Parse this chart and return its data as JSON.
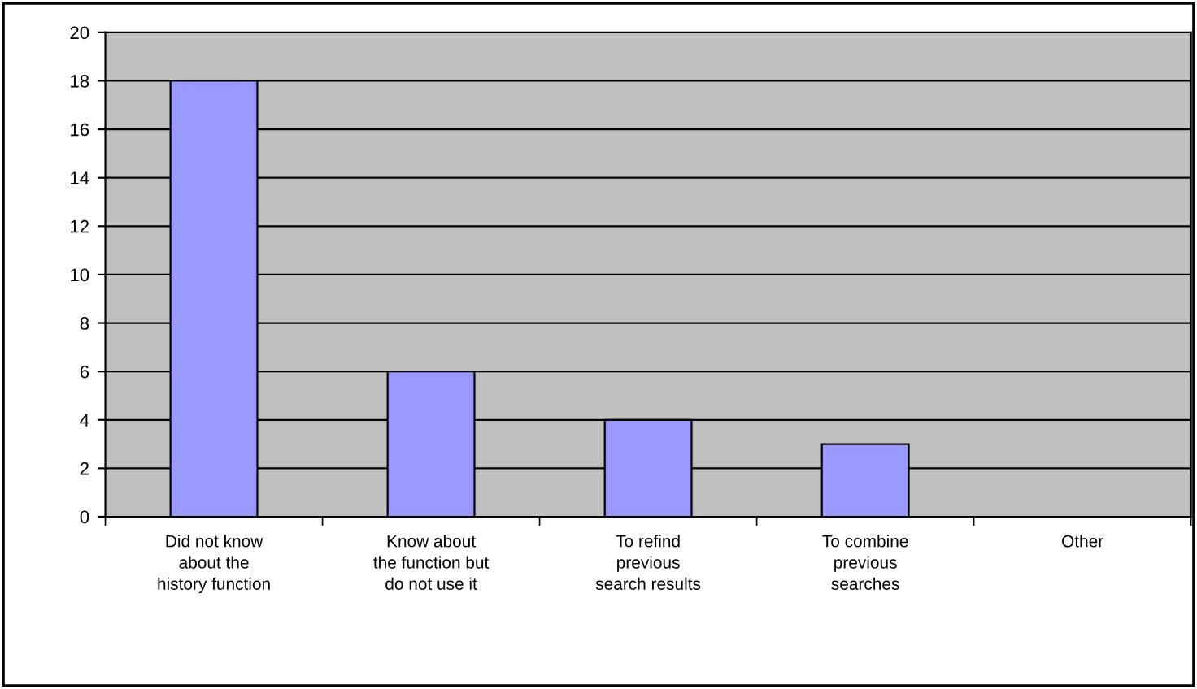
{
  "chart_data": {
    "type": "bar",
    "categories": [
      "Did not know\nabout the\nhistory function",
      "Know about\nthe function but\ndo not use it",
      "To refind\nprevious\nsearch results",
      "To combine\nprevious\nsearches",
      "Other"
    ],
    "values": [
      18,
      6,
      4,
      3,
      0
    ],
    "color": "#9999ff",
    "ylim": [
      0,
      20
    ],
    "yticks": [
      0,
      2,
      4,
      6,
      8,
      10,
      12,
      14,
      16,
      18,
      20
    ],
    "grid": "y",
    "legend": false
  }
}
